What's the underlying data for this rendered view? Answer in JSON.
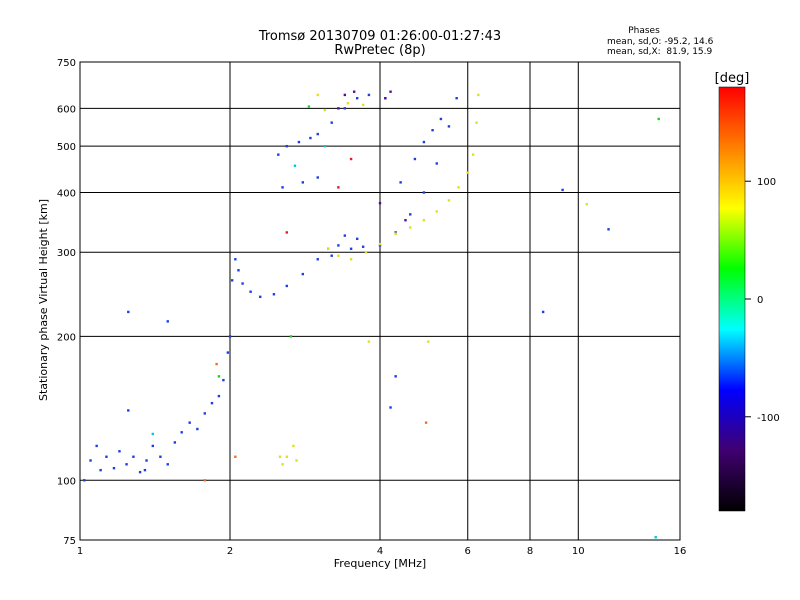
{
  "chart_data": {
    "type": "scatter",
    "title": "Tromsø 20130709 01:26:00-01:27:43",
    "subtitle": "RwPretec (8p)",
    "xlabel": "Frequency [MHz]",
    "ylabel": "Stationary phase Virtual Height [km]",
    "x_scale": "log",
    "y_scale": "log",
    "xlim": [
      1,
      16
    ],
    "ylim": [
      75,
      750
    ],
    "x_ticks": [
      1,
      2,
      4,
      6,
      8,
      10,
      16
    ],
    "y_ticks": [
      75,
      100,
      200,
      300,
      400,
      500,
      600,
      750
    ],
    "grid": true,
    "stats": {
      "heading": "Phases",
      "line_o": "mean, sd,O: -95.2, 14.6",
      "line_x": "mean, sd,X:  81.9, 15.9"
    },
    "colorbar": {
      "label": "[deg]",
      "range": [
        -180,
        180
      ],
      "ticks": [
        100,
        0,
        -100
      ],
      "stops": [
        "#000000",
        "#400070",
        "#0000ff",
        "#00ffff",
        "#00ff00",
        "#ffff00",
        "#ff8000",
        "#ff0000"
      ]
    },
    "series": [
      {
        "phase": -100,
        "color": "#1a40e0",
        "points": [
          [
            1.02,
            100
          ],
          [
            1.05,
            110
          ],
          [
            1.08,
            118
          ],
          [
            1.1,
            105
          ],
          [
            1.13,
            112
          ],
          [
            1.17,
            106
          ],
          [
            1.2,
            115
          ],
          [
            1.24,
            108
          ],
          [
            1.28,
            112
          ],
          [
            1.32,
            104
          ],
          [
            1.36,
            110
          ],
          [
            1.4,
            118
          ],
          [
            1.45,
            112
          ],
          [
            1.5,
            108
          ],
          [
            1.55,
            120
          ],
          [
            1.6,
            126
          ],
          [
            1.66,
            132
          ],
          [
            1.72,
            128
          ],
          [
            1.78,
            138
          ],
          [
            1.84,
            145
          ],
          [
            1.9,
            150
          ],
          [
            1.94,
            162
          ],
          [
            1.98,
            185
          ],
          [
            2.0,
            200
          ],
          [
            2.02,
            262
          ],
          [
            2.05,
            290
          ],
          [
            2.08,
            275
          ],
          [
            2.12,
            258
          ],
          [
            2.2,
            248
          ],
          [
            2.3,
            242
          ],
          [
            2.45,
            245
          ],
          [
            2.6,
            255
          ],
          [
            2.8,
            270
          ],
          [
            3.0,
            290
          ],
          [
            3.15,
            305
          ],
          [
            3.3,
            310
          ],
          [
            3.5,
            305
          ],
          [
            3.7,
            308
          ],
          [
            4.0,
            310
          ],
          [
            4.3,
            330
          ],
          [
            4.6,
            360
          ],
          [
            4.9,
            400
          ],
          [
            5.2,
            460
          ],
          [
            5.5,
            550
          ],
          [
            5.7,
            630
          ],
          [
            2.5,
            480
          ],
          [
            2.6,
            500
          ],
          [
            2.75,
            510
          ],
          [
            2.9,
            520
          ],
          [
            3.0,
            530
          ],
          [
            3.2,
            560
          ],
          [
            3.4,
            600
          ],
          [
            3.6,
            630
          ],
          [
            3.8,
            640
          ],
          [
            4.1,
            630
          ],
          [
            2.55,
            410
          ],
          [
            2.8,
            420
          ],
          [
            3.0,
            430
          ],
          [
            1.25,
            225
          ],
          [
            1.5,
            215
          ],
          [
            3.2,
            295
          ],
          [
            3.6,
            320
          ],
          [
            3.4,
            325
          ],
          [
            4.4,
            420
          ],
          [
            4.7,
            470
          ],
          [
            4.9,
            510
          ],
          [
            5.1,
            540
          ],
          [
            5.3,
            570
          ],
          [
            4.3,
            165
          ],
          [
            4.2,
            142
          ],
          [
            9.3,
            405
          ],
          [
            11.5,
            335
          ],
          [
            8.5,
            225
          ],
          [
            1.35,
            105
          ],
          [
            1.25,
            140
          ]
        ]
      },
      {
        "phase": 90,
        "color": "#e0e020",
        "points": [
          [
            2.52,
            112
          ],
          [
            2.55,
            108
          ],
          [
            2.6,
            112
          ],
          [
            2.68,
            118
          ],
          [
            2.72,
            110
          ],
          [
            3.15,
            305
          ],
          [
            3.3,
            295
          ],
          [
            3.5,
            290
          ],
          [
            3.75,
            300
          ],
          [
            4.0,
            312
          ],
          [
            4.3,
            328
          ],
          [
            4.6,
            338
          ],
          [
            4.9,
            350
          ],
          [
            5.2,
            365
          ],
          [
            5.5,
            385
          ],
          [
            5.75,
            410
          ],
          [
            6.0,
            440
          ],
          [
            6.15,
            480
          ],
          [
            6.25,
            560
          ],
          [
            6.3,
            640
          ],
          [
            3.45,
            615
          ],
          [
            3.7,
            610
          ],
          [
            3.0,
            640
          ],
          [
            3.1,
            595
          ],
          [
            10.4,
            378
          ],
          [
            5.0,
            195
          ],
          [
            3.8,
            195
          ]
        ]
      },
      {
        "phase": -160,
        "color": "#5a0a9a",
        "points": [
          [
            3.3,
            600
          ],
          [
            3.55,
            650
          ],
          [
            3.4,
            640
          ],
          [
            4.2,
            650
          ],
          [
            4.1,
            630
          ],
          [
            4.0,
            380
          ],
          [
            4.5,
            350
          ]
        ]
      },
      {
        "phase": 0,
        "color": "#20d020",
        "points": [
          [
            2.88,
            605
          ],
          [
            1.9,
            165
          ],
          [
            2.65,
            200
          ],
          [
            14.5,
            570
          ]
        ]
      },
      {
        "phase": -40,
        "color": "#00c8d8",
        "points": [
          [
            2.7,
            455
          ],
          [
            3.1,
            500
          ],
          [
            14.3,
            76
          ],
          [
            1.4,
            125
          ]
        ]
      },
      {
        "phase": 150,
        "color": "#f07020",
        "points": [
          [
            1.78,
            100
          ],
          [
            4.95,
            132
          ],
          [
            2.05,
            112
          ],
          [
            1.88,
            175
          ]
        ]
      },
      {
        "phase": 175,
        "color": "#e02020",
        "points": [
          [
            2.6,
            330
          ],
          [
            3.5,
            470
          ],
          [
            3.3,
            410
          ]
        ]
      }
    ]
  }
}
